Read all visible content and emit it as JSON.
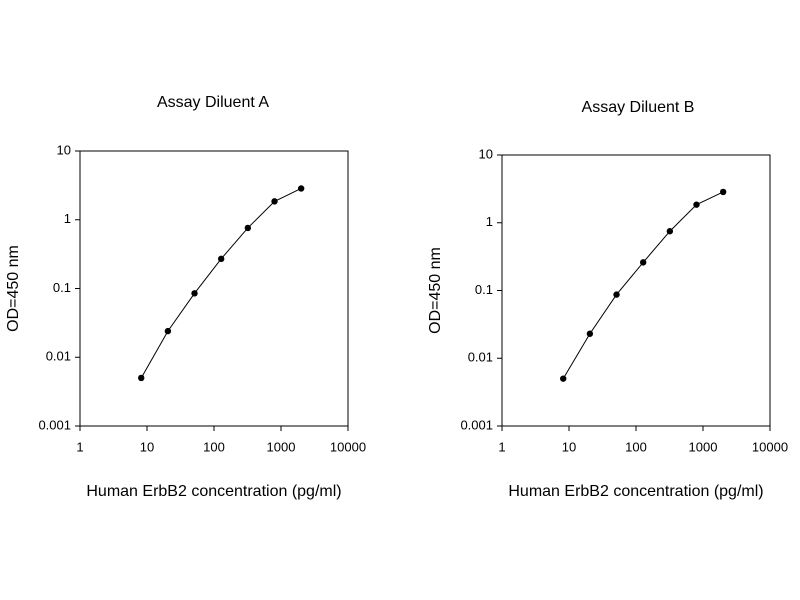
{
  "chart_data": [
    {
      "type": "line",
      "title": "Assay Diluent A",
      "xlabel": "Human ErbB2 concentration (pg/ml)",
      "ylabel": "OD=450 nm",
      "x": [
        8.2,
        20.5,
        51.2,
        128,
        320,
        800,
        2000
      ],
      "values": [
        0.005,
        0.024,
        0.085,
        0.27,
        0.76,
        1.85,
        2.85
      ],
      "color": "#000000",
      "xscale": "log",
      "yscale": "log",
      "xlim": [
        1,
        10000
      ],
      "xticks": [
        1,
        10,
        100,
        1000,
        10000
      ],
      "ylim": [
        0.001,
        10
      ],
      "yticks": [
        0.001,
        0.01,
        0.1,
        1,
        10
      ]
    },
    {
      "type": "line",
      "title": "Assay Diluent B",
      "xlabel": "Human ErbB2 concentration (pg/ml)",
      "ylabel": "OD=450 nm",
      "x": [
        8.2,
        20.5,
        51.2,
        128,
        320,
        800,
        2000
      ],
      "values": [
        0.005,
        0.023,
        0.087,
        0.26,
        0.75,
        1.85,
        2.85
      ],
      "color": "#000000",
      "xscale": "log",
      "yscale": "log",
      "xlim": [
        1,
        10000
      ],
      "xticks": [
        1,
        10,
        100,
        1000,
        10000
      ],
      "ylim": [
        0.001,
        10
      ],
      "yticks": [
        0.001,
        0.01,
        0.1,
        1,
        10
      ]
    }
  ]
}
